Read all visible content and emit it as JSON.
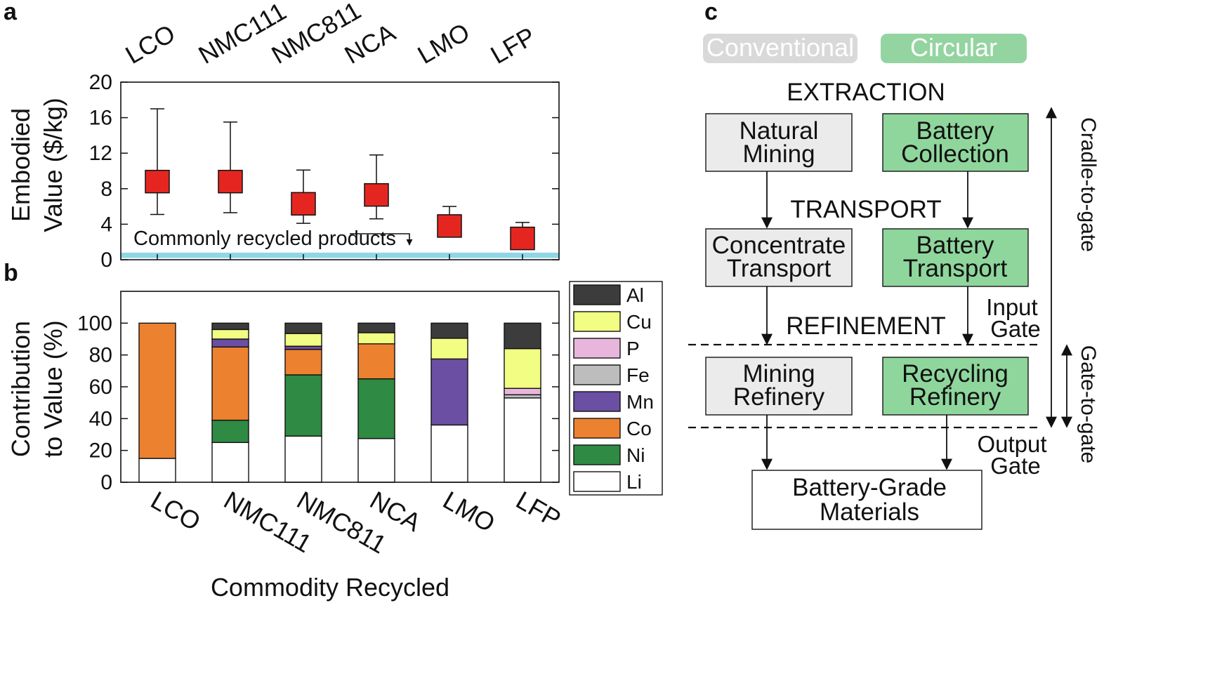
{
  "panel_labels": {
    "a": "a",
    "b": "b",
    "c": "c"
  },
  "chart_data": [
    {
      "type": "scatter",
      "panel": "a",
      "ylabel_lines": [
        "Embodied",
        "Value ($/kg)"
      ],
      "categories": [
        "LCO",
        "NMC111",
        "NMC811",
        "NCA",
        "LMO",
        "LFP"
      ],
      "ylim": [
        0,
        20
      ],
      "yticks": [
        0,
        4,
        8,
        12,
        16,
        20
      ],
      "series": [
        {
          "values": [
            8.8,
            8.8,
            6.3,
            7.3,
            3.8,
            2.4
          ],
          "err_low": [
            5.1,
            5.3,
            4.1,
            4.6,
            2.6,
            1.9
          ],
          "err_high": [
            17.0,
            15.5,
            10.1,
            11.8,
            6.0,
            4.2
          ]
        }
      ],
      "band": {
        "ymin": 0.2,
        "ymax": 0.8,
        "color": "#8fd6e6"
      },
      "annotation": "Commonly recycled products",
      "marker_color": "#e52620",
      "grid": false
    },
    {
      "type": "bar",
      "stacked": true,
      "panel": "b",
      "ylabel_lines": [
        "Contribution",
        "to Value (%)"
      ],
      "xlabel": "Commodity Recycled",
      "categories": [
        "LCO",
        "NMC111",
        "NMC811",
        "NCA",
        "LMO",
        "LFP"
      ],
      "ylim": [
        0,
        120
      ],
      "yticks": [
        0,
        20,
        40,
        60,
        80,
        100
      ],
      "series": [
        {
          "name": "Li",
          "color": "#ffffff",
          "values": [
            15,
            25,
            29,
            27.5,
            36,
            53
          ]
        },
        {
          "name": "Ni",
          "color": "#2f8a44",
          "values": [
            0,
            14,
            38.5,
            37.5,
            0,
            0
          ]
        },
        {
          "name": "Co",
          "color": "#ec8130",
          "values": [
            85,
            46,
            16,
            22,
            0,
            0
          ]
        },
        {
          "name": "Mn",
          "color": "#6a4fa3",
          "values": [
            0,
            5,
            2,
            0,
            41.5,
            0
          ]
        },
        {
          "name": "Fe",
          "color": "#bdbdbd",
          "values": [
            0,
            0,
            0,
            0,
            0,
            2
          ]
        },
        {
          "name": "P",
          "color": "#e8b6dc",
          "values": [
            0,
            0,
            0,
            0,
            0,
            4
          ]
        },
        {
          "name": "Cu",
          "color": "#f2fd83",
          "values": [
            0,
            6,
            8,
            7,
            13,
            25
          ]
        },
        {
          "name": "Al",
          "color": "#3c3c3c",
          "values": [
            0,
            4,
            6.5,
            6,
            9.5,
            16
          ]
        }
      ],
      "legend": [
        "Al",
        "Cu",
        "P",
        "Fe",
        "Mn",
        "Co",
        "Ni",
        "Li"
      ],
      "legend_position": "right",
      "grid": false
    }
  ],
  "diagram": {
    "conventional_label": "Conventional",
    "circular_label": "Circular",
    "conventional_color": "#d9d9d9",
    "circular_color": "#93d4a0",
    "box_conventional_fill": "#ebebeb",
    "box_circular_fill": "#8fd69c",
    "stages": {
      "extraction": "EXTRACTION",
      "transport": "TRANSPORT",
      "refinement": "REFINEMENT"
    },
    "boxes": {
      "natural_mining": [
        "Natural",
        "Mining"
      ],
      "battery_collection": [
        "Battery",
        "Collection"
      ],
      "concentrate_transport": [
        "Concentrate",
        "Transport"
      ],
      "battery_transport": [
        "Battery",
        "Transport"
      ],
      "mining_refinery": [
        "Mining",
        "Refinery"
      ],
      "recycling_refinery": [
        "Recycling",
        "Refinery"
      ],
      "battery_grade": [
        "Battery-Grade",
        "Materials"
      ]
    },
    "gates": {
      "input": [
        "Input",
        "Gate"
      ],
      "output": [
        "Output",
        "Gate"
      ]
    },
    "side_labels": {
      "cradle": "Cradle-to-gate",
      "gate": "Gate-to-gate"
    }
  }
}
